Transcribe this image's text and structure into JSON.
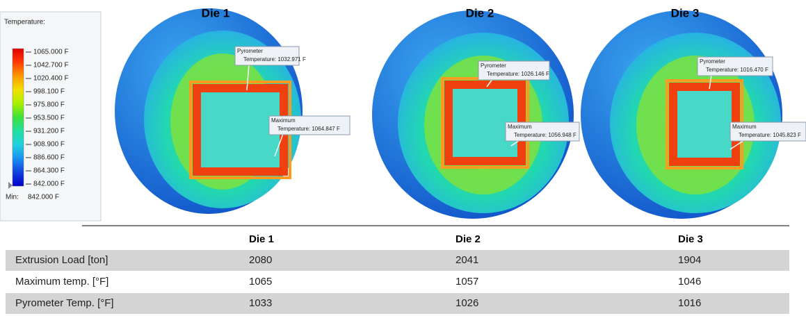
{
  "legend": {
    "title": "Temperature:",
    "labels": [
      "1065.000 F",
      "1042.700 F",
      "1020.400 F",
      "998.100 F",
      "975.800 F",
      "953.500 F",
      "931.200 F",
      "908.900 F",
      "886.600 F",
      "864.300 F",
      "842.000 F"
    ],
    "min_label": "Min:",
    "min_value": "842.000 F"
  },
  "dies": [
    {
      "title": "Die 1",
      "pyrometer": {
        "name": "Pyrometer",
        "text": "Temperature: 1032.971 F"
      },
      "maximum": {
        "name": "Maximum",
        "text": "Temperature: 1064.847 F"
      }
    },
    {
      "title": "Die 2",
      "pyrometer": {
        "name": "Pyrometer",
        "text": "Temperature: 1026.146 F"
      },
      "maximum": {
        "name": "Maximum",
        "text": "Temperature: 1056.948 F"
      }
    },
    {
      "title": "Die 3",
      "pyrometer": {
        "name": "Pyrometer",
        "text": "Temperature: 1016.470 F"
      },
      "maximum": {
        "name": "Maximum",
        "text": "Temperature: 1045.823 F"
      }
    }
  ],
  "table": {
    "header": [
      "Die 1",
      "Die 2",
      "Die 3"
    ],
    "rows": [
      {
        "label": "Extrusion Load [ton]",
        "values": [
          2080,
          2041,
          1904
        ]
      },
      {
        "label": "Maximum temp. [°F]",
        "values": [
          1065,
          1057,
          1046
        ]
      },
      {
        "label": "Pyrometer Temp. [°F]",
        "values": [
          1033,
          1026,
          1016
        ]
      }
    ]
  }
}
